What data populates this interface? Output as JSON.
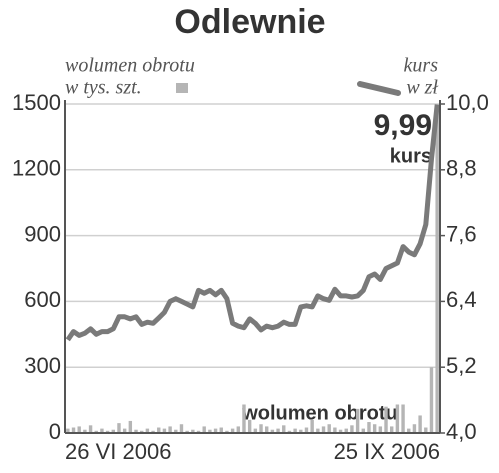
{
  "chart_data": {
    "type": "bar-line",
    "title": "Odlewnie",
    "categories": [
      "26 VI 2006",
      null,
      null,
      null,
      null,
      null,
      null,
      null,
      null,
      null,
      null,
      null,
      null,
      null,
      null,
      null,
      null,
      null,
      null,
      null,
      null,
      null,
      null,
      null,
      null,
      null,
      null,
      null,
      null,
      null,
      null,
      null,
      null,
      null,
      null,
      null,
      null,
      null,
      null,
      null,
      null,
      null,
      null,
      null,
      null,
      null,
      null,
      null,
      null,
      null,
      null,
      null,
      null,
      null,
      null,
      null,
      null,
      null,
      null,
      null,
      null,
      null,
      null,
      null,
      null,
      "25 IX 2006"
    ],
    "series": [
      {
        "name": "wolumen obrotu",
        "color": "#b5b5b5",
        "axis": "y",
        "values": [
          20,
          25,
          30,
          15,
          35,
          10,
          20,
          10,
          15,
          45,
          20,
          55,
          15,
          10,
          20,
          10,
          25,
          20,
          30,
          15,
          40,
          10,
          15,
          10,
          30,
          15,
          20,
          25,
          10,
          20,
          30,
          130,
          60,
          20,
          40,
          30,
          15,
          20,
          35,
          10,
          20,
          15,
          25,
          60,
          20,
          30,
          40,
          25,
          15,
          20,
          35,
          110,
          20,
          50,
          40,
          30,
          120,
          30,
          130,
          130,
          20,
          40,
          80,
          25,
          300,
          1480
        ]
      },
      {
        "name": "kurs",
        "color": "#7a7a7a",
        "axis": "y2",
        "values": [
          5.7,
          5.85,
          5.78,
          5.82,
          5.9,
          5.8,
          5.85,
          5.85,
          5.9,
          6.12,
          6.12,
          6.08,
          6.12,
          5.98,
          6.02,
          6.0,
          6.1,
          6.2,
          6.4,
          6.45,
          6.4,
          6.35,
          6.3,
          6.6,
          6.55,
          6.6,
          6.52,
          6.6,
          6.45,
          6.0,
          5.95,
          5.92,
          6.08,
          6.0,
          5.88,
          5.95,
          5.92,
          5.95,
          6.02,
          5.98,
          5.98,
          6.3,
          6.32,
          6.3,
          6.5,
          6.45,
          6.42,
          6.62,
          6.5,
          6.5,
          6.48,
          6.5,
          6.6,
          6.85,
          6.9,
          6.8,
          7.0,
          7.05,
          7.1,
          7.4,
          7.3,
          7.25,
          7.45,
          7.8,
          9.0,
          9.99
        ]
      }
    ],
    "y_label": "w tys. szt.",
    "y2_label": "w zł",
    "ylim": [
      0,
      1500
    ],
    "yticks": [
      0,
      300,
      600,
      900,
      1200,
      1500
    ],
    "y2lim": [
      4.0,
      10.0
    ],
    "y2ticks": [
      {
        "value": 4.0,
        "label": "4,0"
      },
      {
        "value": 5.2,
        "label": "5,2"
      },
      {
        "value": 6.4,
        "label": "6,4"
      },
      {
        "value": 7.6,
        "label": "7,6"
      },
      {
        "value": 8.8,
        "label": "8,8"
      },
      {
        "value": 10.0,
        "label": "10,0"
      }
    ],
    "grid": true,
    "annotations": [
      {
        "text": "9,99"
      },
      {
        "text": "kurs"
      },
      {
        "text": "wolumen obrotu"
      }
    ]
  }
}
